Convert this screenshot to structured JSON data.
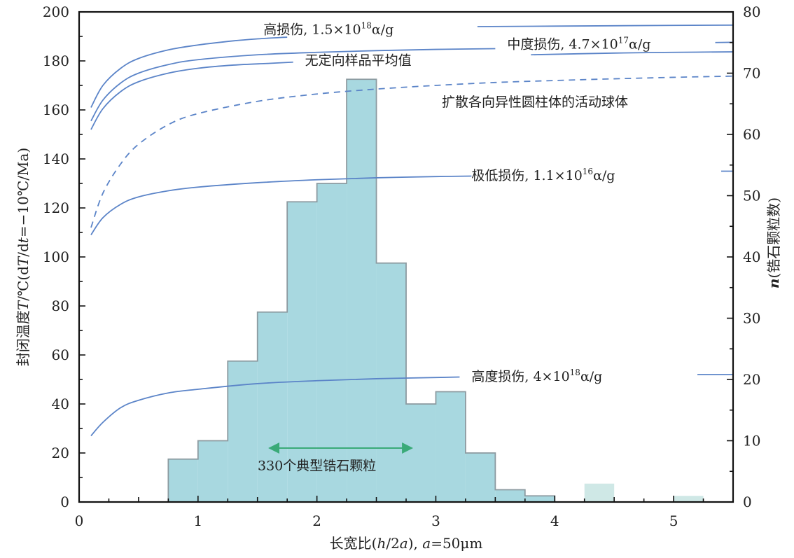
{
  "chart_data": {
    "type": "bar",
    "title": "",
    "xlabel": "长宽比(h/2a), a=50μm",
    "ylabel_left": "封闭温度T/℃(dT/dt=−10℃/Ma)",
    "ylabel_right": "n(锆石颗粒数)",
    "xlim": [
      0,
      5.5
    ],
    "ylim_left": [
      0,
      200
    ],
    "ylim_right": [
      0,
      80
    ],
    "x_ticks": [
      "0",
      "1",
      "2",
      "3",
      "4",
      "5"
    ],
    "y_left_ticks": [
      "0",
      "20",
      "40",
      "60",
      "80",
      "100",
      "120",
      "140",
      "160",
      "180",
      "200"
    ],
    "y_right_ticks": [
      "0",
      "10",
      "20",
      "30",
      "40",
      "50",
      "60",
      "70",
      "80"
    ],
    "colors": {
      "bar_fill": "#a8d8e0",
      "bar_stroke": "#8c9aa0",
      "faint_bar_fill": "#cfe8e6",
      "curve": "#5b84c8",
      "arrow": "#3aaa78"
    },
    "histogram": {
      "axis": "right",
      "bin_width": 0.25,
      "bins": [
        {
          "x0": 0.75,
          "count": 7
        },
        {
          "x0": 1.0,
          "count": 10
        },
        {
          "x0": 1.25,
          "count": 23
        },
        {
          "x0": 1.5,
          "count": 31
        },
        {
          "x0": 1.75,
          "count": 49
        },
        {
          "x0": 2.0,
          "count": 52
        },
        {
          "x0": 2.25,
          "count": 69
        },
        {
          "x0": 2.5,
          "count": 39
        },
        {
          "x0": 2.75,
          "count": 16
        },
        {
          "x0": 3.0,
          "count": 18
        },
        {
          "x0": 3.25,
          "count": 8
        },
        {
          "x0": 3.5,
          "count": 2
        },
        {
          "x0": 3.75,
          "count": 1
        }
      ],
      "faint_bins": [
        {
          "x0": 4.25,
          "count": 3
        },
        {
          "x0": 5.0,
          "count": 1
        }
      ]
    },
    "series": [
      {
        "name": "高损伤, 1.5×10¹⁸α/g",
        "axis": "left",
        "dashed": false,
        "points": [
          [
            0.1,
            161
          ],
          [
            0.2,
            170
          ],
          [
            0.35,
            177
          ],
          [
            0.5,
            181
          ],
          [
            0.75,
            184.5
          ],
          [
            1.0,
            186.5
          ],
          [
            1.3,
            188.2
          ],
          [
            1.5,
            189
          ],
          [
            1.75,
            189.7
          ]
        ]
      },
      {
        "name": "中度损伤, 4.7×10¹⁷α/g",
        "axis": "left",
        "dashed": false,
        "points": [
          [
            0.1,
            155.5
          ],
          [
            0.2,
            164
          ],
          [
            0.35,
            171
          ],
          [
            0.5,
            175
          ],
          [
            0.75,
            178.5
          ],
          [
            1.0,
            180.5
          ],
          [
            1.5,
            182.5
          ],
          [
            2.0,
            183.5
          ],
          [
            2.5,
            184.2
          ],
          [
            3.0,
            184.7
          ],
          [
            3.5,
            185
          ]
        ]
      },
      {
        "name": "无定向样品平均值",
        "axis": "left",
        "dashed": false,
        "points": [
          [
            0.1,
            152
          ],
          [
            0.2,
            160.5
          ],
          [
            0.35,
            167.5
          ],
          [
            0.5,
            171.5
          ],
          [
            0.75,
            175
          ],
          [
            1.0,
            177
          ],
          [
            1.3,
            178.3
          ],
          [
            1.6,
            179
          ],
          [
            1.8,
            179.5
          ]
        ]
      },
      {
        "name": "扩散各向异性圆柱体的活动球体",
        "axis": "left",
        "dashed": true,
        "points": [
          [
            0.1,
            112
          ],
          [
            0.2,
            126
          ],
          [
            0.35,
            138
          ],
          [
            0.5,
            146
          ],
          [
            0.75,
            154
          ],
          [
            1.0,
            158.5
          ],
          [
            1.5,
            163.5
          ],
          [
            2.0,
            166.5
          ],
          [
            2.5,
            168.5
          ],
          [
            3.0,
            170
          ],
          [
            3.5,
            171.2
          ],
          [
            4.0,
            172
          ],
          [
            4.5,
            172.7
          ],
          [
            5.0,
            173.3
          ],
          [
            5.5,
            173.8
          ]
        ]
      },
      {
        "name": "极低损伤, 1.1×10¹⁶α/g",
        "axis": "left",
        "dashed": false,
        "points": [
          [
            0.1,
            109
          ],
          [
            0.2,
            116
          ],
          [
            0.35,
            121.5
          ],
          [
            0.5,
            124.5
          ],
          [
            0.75,
            127
          ],
          [
            1.0,
            128.5
          ],
          [
            1.5,
            130.3
          ],
          [
            2.0,
            131.5
          ],
          [
            2.5,
            132.3
          ],
          [
            3.0,
            132.8
          ],
          [
            3.3,
            133
          ]
        ]
      },
      {
        "name": "高度损伤, 4×10¹⁸α/g",
        "axis": "left",
        "dashed": false,
        "points": [
          [
            0.1,
            27
          ],
          [
            0.2,
            32.5
          ],
          [
            0.35,
            38.5
          ],
          [
            0.5,
            41.5
          ],
          [
            0.75,
            44.5
          ],
          [
            1.0,
            46
          ],
          [
            1.5,
            48.3
          ],
          [
            2.0,
            49.5
          ],
          [
            2.5,
            50.3
          ],
          [
            3.0,
            50.8
          ],
          [
            3.2,
            51
          ]
        ]
      },
      {
        "axis": "left",
        "dashed": false,
        "points": [
          [
            3.35,
            194
          ],
          [
            4.0,
            194.2
          ],
          [
            5.0,
            194.5
          ],
          [
            5.5,
            194.6
          ]
        ]
      },
      {
        "axis": "left",
        "dashed": false,
        "points": [
          [
            3.8,
            182.5
          ],
          [
            4.5,
            183.2
          ],
          [
            5.0,
            183.5
          ],
          [
            5.5,
            183.7
          ]
        ]
      },
      {
        "axis": "left",
        "dashed": false,
        "points": [
          [
            5.35,
            187.5
          ],
          [
            5.5,
            187.6
          ]
        ]
      },
      {
        "axis": "left",
        "dashed": false,
        "points": [
          [
            5.4,
            135
          ],
          [
            5.5,
            135
          ]
        ]
      },
      {
        "axis": "left",
        "dashed": false,
        "points": [
          [
            5.2,
            52
          ],
          [
            5.5,
            52
          ]
        ]
      }
    ],
    "annotations": {
      "high_damage": {
        "prefix": "高损伤, 1.5×10",
        "exp": "18",
        "suffix": "α/g",
        "x": 1.55,
        "y": 191
      },
      "medium_damage": {
        "prefix": "中度损伤, 4.7×10",
        "exp": "17",
        "suffix": "α/g",
        "x": 3.6,
        "y": 185
      },
      "unoriented_mean": {
        "text": "无定向样品平均值",
        "x": 1.9,
        "y": 178.5
      },
      "active_sphere": {
        "text": "扩散各向异性圆柱体的活动球体",
        "x": 3.05,
        "y": 161.5
      },
      "very_low_damage": {
        "prefix": "极低损伤, 1.1×10",
        "exp": "16",
        "suffix": "α/g",
        "x": 3.3,
        "y": 131.5
      },
      "highly_damaged": {
        "prefix": "高度损伤, 4×10",
        "exp": "18",
        "suffix": "α/g",
        "x": 3.3,
        "y": 49.5
      },
      "grain_count": {
        "text": "330个典型锆石颗粒",
        "x": 2.0,
        "y": 13,
        "arrow_from": 1.6,
        "arrow_to": 2.8,
        "arrow_y": 22
      }
    }
  }
}
